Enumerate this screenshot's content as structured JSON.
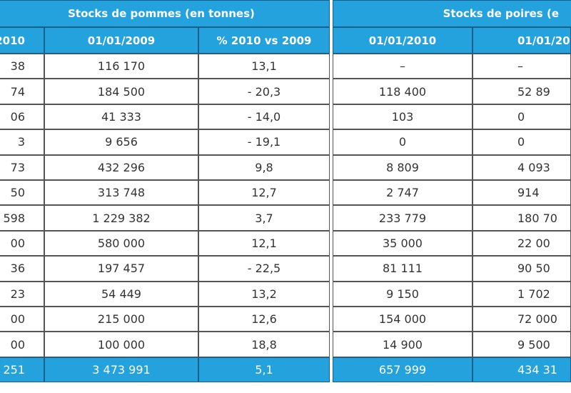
{
  "header": {
    "group_titles": [
      "Stocks de pommes (en tonnes)",
      "Stocks de poires (e"
    ],
    "column_headers": [
      "2010",
      "01/01/2009",
      "% 2010 vs 2009",
      "01/01/2010",
      "01/01/201"
    ]
  },
  "table": {
    "rows": [
      [
        "38",
        "116 170",
        "13,1",
        "–",
        "–"
      ],
      [
        "74",
        "184 500",
        "- 20,3",
        "118 400",
        "52 89"
      ],
      [
        "06",
        "41 333",
        "- 14,0",
        "103",
        "0"
      ],
      [
        "3",
        "9 656",
        "- 19,1",
        "0",
        "0"
      ],
      [
        "73",
        "432 296",
        "9,8",
        "8 809",
        "4 093"
      ],
      [
        "50",
        "313 748",
        "12,7",
        "2 747",
        "914"
      ],
      [
        "598",
        "1 229 382",
        "3,7",
        "233 779",
        "180 70"
      ],
      [
        "00",
        "580 000",
        "12,1",
        "35 000",
        "22 00"
      ],
      [
        "36",
        "197 457",
        "- 22,5",
        "81 111",
        "90 50"
      ],
      [
        "23",
        "54 449",
        "13,2",
        "9 150",
        "1 702"
      ],
      [
        "00",
        "215 000",
        "12,6",
        "154 000",
        "72 000"
      ],
      [
        "00",
        "100 000",
        "18,8",
        "14 900",
        "9 500"
      ]
    ],
    "total": [
      "251",
      "3 473 991",
      "5,1",
      "657 999",
      "434 31"
    ]
  }
}
